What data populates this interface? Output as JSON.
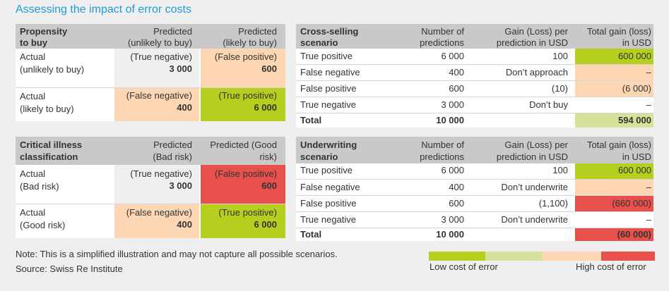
{
  "title": "Assessing the impact of error costs",
  "colors": {
    "green": "#b6cf1e",
    "lightgreen": "#d6e29a",
    "peach": "#fdd7b4",
    "red": "#e8504c",
    "header": "#c9c9c9",
    "gray": "#efefef"
  },
  "propensity": {
    "header": {
      "c1": "Propensity\nto buy",
      "c2": "Predicted\n(unlikely to buy)",
      "c3": "Predicted\n(likely to buy)"
    },
    "rows": [
      {
        "label": "Actual\n(unlikely to buy)",
        "c2": {
          "text": "(True negative)",
          "value": "3 000"
        },
        "c3": {
          "text": "(False positive)",
          "value": "600"
        }
      },
      {
        "label": "Actual\n(likely to buy)",
        "c2": {
          "text": "(False negative)",
          "value": "400"
        },
        "c3": {
          "text": "(True positive)",
          "value": "6 000"
        }
      }
    ]
  },
  "critical": {
    "header": {
      "c1": "Critical illness\nclassification",
      "c2": "Predicted\n(Bad risk)",
      "c3": "Predicted (Good\nrisk)"
    },
    "rows": [
      {
        "label": "Actual\n(Bad risk)",
        "c2": {
          "text": "(True negative)",
          "value": "3 000"
        },
        "c3": {
          "text": "(False positive)",
          "value": "600"
        }
      },
      {
        "label": "Actual\n(Good risk)",
        "c2": {
          "text": "(False negative)",
          "value": "400"
        },
        "c3": {
          "text": "(True positive)",
          "value": "6 000"
        }
      }
    ]
  },
  "cross": {
    "header": {
      "c1": "Cross-selling\nscenario",
      "c2": "Number of\npredictions",
      "c3": "Gain (Loss) per\nprediction in USD",
      "c4": "Total gain (loss)\nin USD"
    },
    "rows": [
      {
        "label": "True positive",
        "n": "6 000",
        "gain": "100",
        "total": "600 000"
      },
      {
        "label": "False negative",
        "n": "400",
        "gain": "Don’t approach",
        "total": "–"
      },
      {
        "label": "False positive",
        "n": "600",
        "gain": "(10)",
        "total": "(6 000)"
      },
      {
        "label": "True negative",
        "n": "3 000",
        "gain": "Don’t buy",
        "total": "–"
      }
    ],
    "total": {
      "label": "Total",
      "n": "10 000",
      "value": "594 000"
    }
  },
  "underwriting": {
    "header": {
      "c1": "Underwriting\nscenario",
      "c2": "Number of\npredictions",
      "c3": "Gain (Loss) per\nprediction in USD",
      "c4": "Total gain (loss)\nin USD"
    },
    "rows": [
      {
        "label": "True positive",
        "n": "6 000",
        "gain": "100",
        "total": "600 000"
      },
      {
        "label": "False negative",
        "n": "400",
        "gain": "Don’t underwrite",
        "total": "–"
      },
      {
        "label": "False positive",
        "n": "600",
        "gain": "(1,100)",
        "total": "(660 000)"
      },
      {
        "label": "True negative",
        "n": "3 000",
        "gain": "Don’t underwrite",
        "total": "–"
      }
    ],
    "total": {
      "label": "Total",
      "n": "10 000",
      "value": "(60 000)"
    }
  },
  "note": "Note: This is a simplified illustration and may not capture all possible scenarios.",
  "source": "Source: Swiss Re Institute",
  "legend": {
    "low": "Low cost of error",
    "high": "High cost of error"
  }
}
